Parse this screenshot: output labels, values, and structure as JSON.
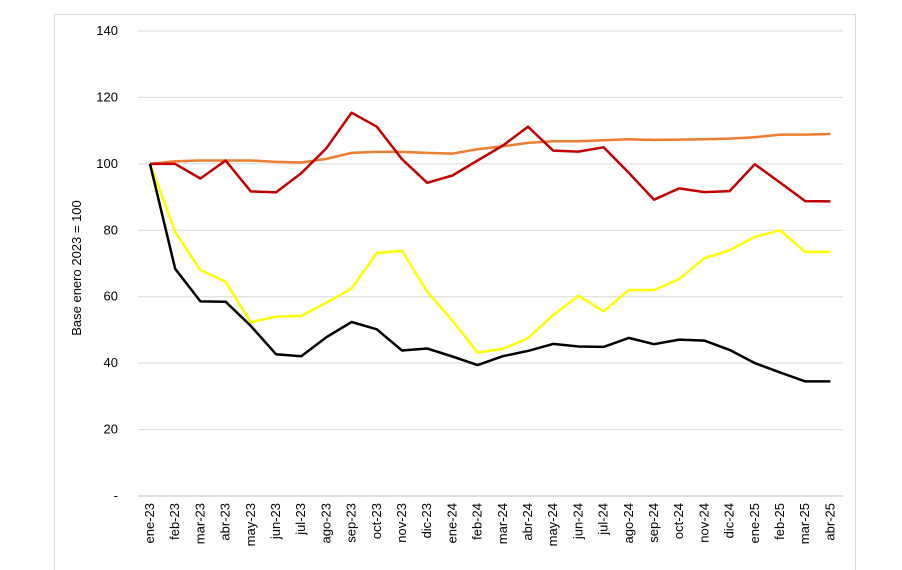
{
  "chart_data": {
    "type": "line",
    "title": "",
    "xlabel": "",
    "ylabel": "Base enero 2023 = 100",
    "ylim": [
      0,
      140
    ],
    "yticks": [
      0,
      20,
      40,
      60,
      80,
      100,
      120,
      140
    ],
    "ytick_labels": [
      "-",
      "20",
      "40",
      "60",
      "80",
      "100",
      "120",
      "140"
    ],
    "grid": true,
    "legend": "none",
    "categories": [
      "ene-23",
      "feb-23",
      "mar-23",
      "abr-23",
      "may-23",
      "jun-23",
      "jul-23",
      "ago-23",
      "sep-23",
      "oct-23",
      "nov-23",
      "dic-23",
      "ene-24",
      "feb-24",
      "mar-24",
      "abr-24",
      "may-24",
      "jun-24",
      "jul-24",
      "ago-24",
      "sep-24",
      "oct-24",
      "nov-24",
      "dic-24",
      "ene-25",
      "feb-25",
      "mar-25",
      "abr-25"
    ],
    "series": [
      {
        "color": "#ed7d31",
        "values": [
          100,
          100.8,
          101,
          101,
          101,
          100.6,
          100.4,
          101.5,
          103.3,
          103.6,
          103.6,
          103.3,
          103.1,
          104.4,
          105.3,
          106.3,
          106.8,
          106.8,
          107.1,
          107.4,
          107.2,
          107.3,
          107.4,
          107.6,
          108,
          108.8,
          108.8,
          109
        ]
      },
      {
        "color": "#c00000",
        "values": [
          100,
          100,
          95.6,
          101,
          91.7,
          91.4,
          97.2,
          104.7,
          115.4,
          111.2,
          101.4,
          94.3,
          96.5,
          101,
          105.5,
          111.2,
          104,
          103.7,
          105,
          97.3,
          89.2,
          92.6,
          91.5,
          91.8,
          99.9,
          94.4,
          88.8,
          88.7
        ]
      },
      {
        "color": "#ffff00",
        "values": [
          100,
          79.5,
          68,
          64.5,
          52.3,
          54,
          54.2,
          58.2,
          62.5,
          73.2,
          73.8,
          61.5,
          52.8,
          43.2,
          44.3,
          47.5,
          54.5,
          60.3,
          55.6,
          62,
          62,
          65.3,
          71.6,
          74,
          78,
          80,
          73.5,
          73.5
        ]
      },
      {
        "color": "#000000",
        "values": [
          100,
          68.4,
          58.6,
          58.5,
          51.2,
          42.7,
          42.1,
          47.8,
          52.4,
          50.2,
          43.8,
          44.4,
          42,
          39.4,
          42.1,
          43.7,
          45.8,
          45,
          44.9,
          47.6,
          45.7,
          47.1,
          46.8,
          44,
          40,
          37.2,
          34.5,
          34.5
        ]
      }
    ]
  }
}
